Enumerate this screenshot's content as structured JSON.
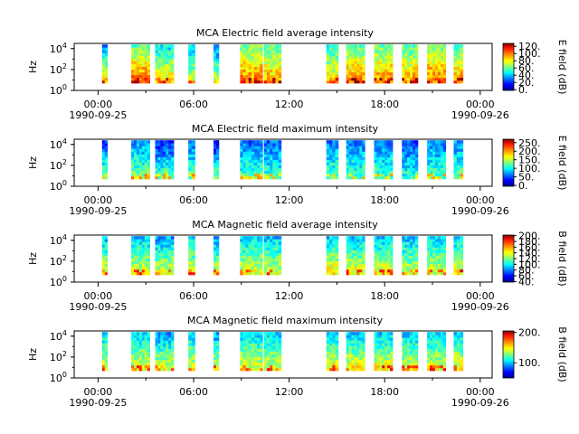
{
  "chart_data": [
    {
      "type": "heatmap",
      "title": "MCA  Electric field average intensity",
      "ylabel": "Hz",
      "ylim_exponent": [
        0,
        4.5
      ],
      "y_ticks": [
        {
          "base": "10",
          "exp": "0",
          "v": 0
        },
        {
          "base": "10",
          "exp": "2",
          "v": 2
        },
        {
          "base": "10",
          "exp": "4",
          "v": 4
        }
      ],
      "x_ticks": [
        "00:00",
        "06:00",
        "12:00",
        "18:00",
        "00:00"
      ],
      "x_dates": [
        "1990-09-25",
        "1990-09-26"
      ],
      "colorbar": {
        "label": "E field (dB)",
        "min": -2,
        "max": 128,
        "ticks": [
          "0.",
          "20.",
          "40.",
          "60.",
          "80.",
          "100.",
          "120."
        ],
        "tick_values": [
          0,
          20,
          40,
          60,
          80,
          100,
          120
        ]
      },
      "segments": [
        {
          "start": "00:15",
          "end": "00:35",
          "level": 0.45,
          "contrast": 0.5
        },
        {
          "start": "02:05",
          "end": "03:15",
          "level": 0.62,
          "contrast": 0.35
        },
        {
          "start": "03:35",
          "end": "04:45",
          "level": 0.5,
          "contrast": 0.35
        },
        {
          "start": "05:40",
          "end": "06:05",
          "level": 0.45,
          "contrast": 0.3
        },
        {
          "start": "07:15",
          "end": "07:35",
          "level": 0.4,
          "contrast": 0.45
        },
        {
          "start": "08:55",
          "end": "10:20",
          "level": 0.62,
          "contrast": 0.3
        },
        {
          "start": "10:25",
          "end": "11:30",
          "level": 0.58,
          "contrast": 0.3
        },
        {
          "start": "14:20",
          "end": "15:05",
          "level": 0.52,
          "contrast": 0.3
        },
        {
          "start": "15:35",
          "end": "16:45",
          "level": 0.6,
          "contrast": 0.3
        },
        {
          "start": "17:20",
          "end": "18:30",
          "level": 0.6,
          "contrast": 0.3
        },
        {
          "start": "19:05",
          "end": "20:05",
          "level": 0.58,
          "contrast": 0.3
        },
        {
          "start": "20:40",
          "end": "21:50",
          "level": 0.62,
          "contrast": 0.3
        },
        {
          "start": "22:20",
          "end": "22:55",
          "level": 0.58,
          "contrast": 0.3
        }
      ]
    },
    {
      "type": "heatmap",
      "title": "MCA  Electric field maximum intensity",
      "ylabel": "Hz",
      "ylim_exponent": [
        0,
        4.5
      ],
      "y_ticks": [
        {
          "base": "10",
          "exp": "0",
          "v": 0
        },
        {
          "base": "10",
          "exp": "2",
          "v": 2
        },
        {
          "base": "10",
          "exp": "4",
          "v": 4
        }
      ],
      "x_ticks": [
        "00:00",
        "06:00",
        "12:00",
        "18:00",
        "00:00"
      ],
      "x_dates": [
        "1990-09-25",
        "1990-09-26"
      ],
      "colorbar": {
        "label": "E field (dB)",
        "min": -5,
        "max": 270,
        "ticks": [
          "0.",
          "50.",
          "100.",
          "150.",
          "200.",
          "250."
        ],
        "tick_values": [
          0,
          50,
          100,
          150,
          200,
          250
        ]
      },
      "segments": [
        {
          "start": "00:15",
          "end": "00:35",
          "level": 0.33,
          "contrast": 0.4
        },
        {
          "start": "02:05",
          "end": "03:15",
          "level": 0.38,
          "contrast": 0.25
        },
        {
          "start": "03:35",
          "end": "04:45",
          "level": 0.3,
          "contrast": 0.4
        },
        {
          "start": "05:40",
          "end": "06:05",
          "level": 0.35,
          "contrast": 0.25
        },
        {
          "start": "07:15",
          "end": "07:35",
          "level": 0.28,
          "contrast": 0.4
        },
        {
          "start": "08:55",
          "end": "10:20",
          "level": 0.33,
          "contrast": 0.25
        },
        {
          "start": "10:25",
          "end": "11:30",
          "level": 0.32,
          "contrast": 0.25
        },
        {
          "start": "14:20",
          "end": "15:05",
          "level": 0.35,
          "contrast": 0.25
        },
        {
          "start": "15:35",
          "end": "16:45",
          "level": 0.34,
          "contrast": 0.25
        },
        {
          "start": "17:20",
          "end": "18:30",
          "level": 0.33,
          "contrast": 0.25
        },
        {
          "start": "19:05",
          "end": "20:05",
          "level": 0.3,
          "contrast": 0.25
        },
        {
          "start": "20:40",
          "end": "21:50",
          "level": 0.34,
          "contrast": 0.25
        },
        {
          "start": "22:20",
          "end": "22:55",
          "level": 0.36,
          "contrast": 0.25
        }
      ]
    },
    {
      "type": "heatmap",
      "title": "MCA  Magnetic field average intensity",
      "ylabel": "Hz",
      "ylim_exponent": [
        0,
        4.5
      ],
      "y_ticks": [
        {
          "base": "10",
          "exp": "0",
          "v": 0
        },
        {
          "base": "10",
          "exp": "2",
          "v": 2
        },
        {
          "base": "10",
          "exp": "4",
          "v": 4
        }
      ],
      "x_ticks": [
        "00:00",
        "06:00",
        "12:00",
        "18:00",
        "00:00"
      ],
      "x_dates": [
        "1990-09-25",
        "1990-09-26"
      ],
      "colorbar": {
        "label": "B field (dB)",
        "min": 38,
        "max": 202,
        "ticks": [
          "40.",
          "60.",
          "80.",
          "100.",
          "120.",
          "140.",
          "160.",
          "180.",
          "200."
        ],
        "tick_values": [
          40,
          60,
          80,
          100,
          120,
          140,
          160,
          180,
          200
        ]
      },
      "segments": [
        {
          "start": "00:15",
          "end": "00:35",
          "level": 0.45,
          "contrast": 0.35
        },
        {
          "start": "02:05",
          "end": "03:15",
          "level": 0.45,
          "contrast": 0.3
        },
        {
          "start": "03:35",
          "end": "04:45",
          "level": 0.42,
          "contrast": 0.35
        },
        {
          "start": "05:40",
          "end": "06:05",
          "level": 0.45,
          "contrast": 0.3
        },
        {
          "start": "07:15",
          "end": "07:35",
          "level": 0.42,
          "contrast": 0.35
        },
        {
          "start": "08:55",
          "end": "10:20",
          "level": 0.45,
          "contrast": 0.3
        },
        {
          "start": "10:25",
          "end": "11:30",
          "level": 0.44,
          "contrast": 0.3
        },
        {
          "start": "14:20",
          "end": "15:05",
          "level": 0.47,
          "contrast": 0.35
        },
        {
          "start": "15:35",
          "end": "16:45",
          "level": 0.46,
          "contrast": 0.35
        },
        {
          "start": "17:20",
          "end": "18:30",
          "level": 0.46,
          "contrast": 0.35
        },
        {
          "start": "19:05",
          "end": "20:05",
          "level": 0.44,
          "contrast": 0.3
        },
        {
          "start": "20:40",
          "end": "21:50",
          "level": 0.45,
          "contrast": 0.3
        },
        {
          "start": "22:20",
          "end": "22:55",
          "level": 0.47,
          "contrast": 0.35
        }
      ]
    },
    {
      "type": "heatmap",
      "title": "MCA  Magnetic field maximum intensity",
      "ylabel": "Hz",
      "ylim_exponent": [
        0,
        4.5
      ],
      "y_ticks": [
        {
          "base": "10",
          "exp": "0",
          "v": 0
        },
        {
          "base": "10",
          "exp": "2",
          "v": 2
        },
        {
          "base": "10",
          "exp": "4",
          "v": 4
        }
      ],
      "x_ticks": [
        "00:00",
        "06:00",
        "12:00",
        "18:00",
        "00:00"
      ],
      "x_dates": [
        "1990-09-25",
        "1990-09-26"
      ],
      "colorbar": {
        "label": "B field (dB)",
        "min": 50,
        "max": 205,
        "ticks": [
          "100.",
          "200."
        ],
        "tick_values": [
          100,
          200
        ]
      },
      "segments": [
        {
          "start": "00:15",
          "end": "00:35",
          "level": 0.45,
          "contrast": 0.35
        },
        {
          "start": "02:05",
          "end": "03:15",
          "level": 0.46,
          "contrast": 0.3
        },
        {
          "start": "03:35",
          "end": "04:45",
          "level": 0.42,
          "contrast": 0.35
        },
        {
          "start": "05:40",
          "end": "06:05",
          "level": 0.46,
          "contrast": 0.3
        },
        {
          "start": "07:15",
          "end": "07:35",
          "level": 0.42,
          "contrast": 0.35
        },
        {
          "start": "08:55",
          "end": "10:20",
          "level": 0.46,
          "contrast": 0.3
        },
        {
          "start": "10:25",
          "end": "11:30",
          "level": 0.45,
          "contrast": 0.3
        },
        {
          "start": "14:20",
          "end": "15:05",
          "level": 0.48,
          "contrast": 0.35
        },
        {
          "start": "15:35",
          "end": "16:45",
          "level": 0.47,
          "contrast": 0.35
        },
        {
          "start": "17:20",
          "end": "18:30",
          "level": 0.47,
          "contrast": 0.35
        },
        {
          "start": "19:05",
          "end": "20:05",
          "level": 0.45,
          "contrast": 0.3
        },
        {
          "start": "20:40",
          "end": "21:50",
          "level": 0.46,
          "contrast": 0.3
        },
        {
          "start": "22:20",
          "end": "22:55",
          "level": 0.48,
          "contrast": 0.35
        }
      ]
    }
  ]
}
